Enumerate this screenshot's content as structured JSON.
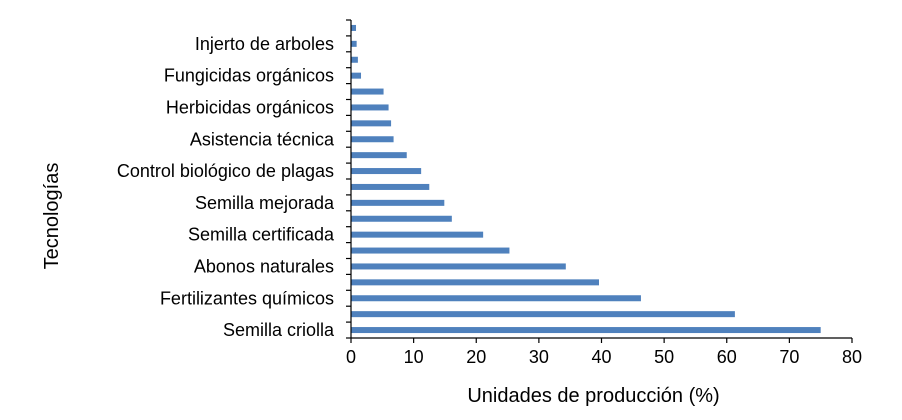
{
  "chart_data": {
    "type": "bar",
    "orientation": "horizontal",
    "xlabel": "Unidades de producción (%)",
    "ylabel": "Tecnologías",
    "xlim": [
      0,
      80
    ],
    "xticks": [
      0,
      10,
      20,
      30,
      40,
      50,
      60,
      70,
      80
    ],
    "grid": false,
    "bar_color": "#4f81bd",
    "categories": [
      "Semilla criolla",
      "",
      "Fertilizantes químicos",
      "",
      "Abonos naturales",
      "",
      "Semilla certificada",
      "",
      "Semilla mejorada",
      "",
      "Control biológico de plagas",
      "",
      "Asistencia técnica",
      "",
      "Herbicidas orgánicos ",
      "",
      "Fungicidas orgánicos",
      "",
      "Injerto de arboles",
      ""
    ],
    "values": [
      75,
      61.3,
      46.3,
      39.6,
      34.3,
      25.3,
      21.1,
      16.1,
      14.9,
      12.5,
      11.2,
      8.9,
      6.8,
      6.4,
      6.0,
      5.2,
      1.6,
      1.1,
      0.9,
      0.8
    ]
  }
}
